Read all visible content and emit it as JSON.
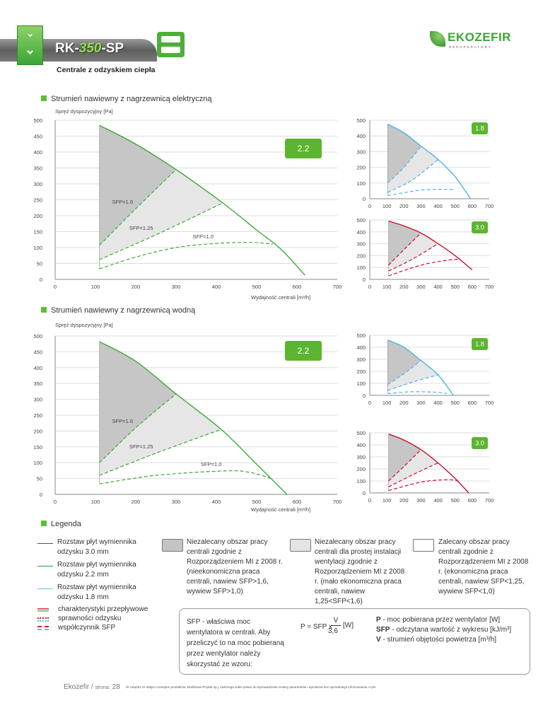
{
  "header": {
    "model_prefix": "RK-",
    "model_number": "350",
    "model_suffix": "-SP",
    "subtitle": "Centrale z odzyskiem ciepła",
    "logo_name": "EKOZEFIR",
    "logo_tagline": "REKUPERATORY"
  },
  "sections": {
    "electric": "Strumień nawiewny z nagrzewnicą elektryczną",
    "water": "Strumień nawiewny z nagrzewnicą wodną",
    "legend": "Legenda"
  },
  "colors": {
    "green": "#3aaa35",
    "blue": "#4db3e6",
    "red": "#c8102e",
    "dark_area": "#c6c6c6",
    "light_area": "#e6e6e6"
  },
  "chart_data": [
    {
      "id": "electric-2.2",
      "type": "line",
      "badge": "2.2",
      "color": "green",
      "ylabel": "Spręż dyspozycyjny [Pa]",
      "xlabel": "Wydajność centrali [m³/h]",
      "xlim": [
        0,
        700
      ],
      "ylim": [
        0,
        500
      ],
      "xticks": [
        0,
        100,
        200,
        300,
        400,
        500,
        600,
        700
      ],
      "yticks": [
        0,
        50,
        100,
        150,
        200,
        250,
        300,
        350,
        400,
        450,
        500
      ],
      "curve": [
        [
          110,
          484
        ],
        [
          200,
          425
        ],
        [
          300,
          345
        ],
        [
          416,
          240
        ],
        [
          500,
          155
        ],
        [
          560,
          95
        ],
        [
          620,
          13
        ]
      ],
      "sfp16": [
        [
          110,
          107
        ],
        [
          200,
          222
        ],
        [
          300,
          345
        ]
      ],
      "sfp125": [
        [
          110,
          62
        ],
        [
          250,
          140
        ],
        [
          416,
          240
        ]
      ],
      "sfp10": [
        [
          110,
          33
        ],
        [
          200,
          70
        ],
        [
          300,
          100
        ],
        [
          400,
          113
        ],
        [
          486,
          116
        ],
        [
          540,
          111
        ]
      ],
      "labels": {
        "sfp16": "SFP=1.6",
        "sfp125": "SFP=1.25",
        "sfp10": "SFP=1.0"
      }
    },
    {
      "id": "electric-1.8",
      "type": "line",
      "badge": "1.8",
      "color": "blue",
      "xlim": [
        0,
        700
      ],
      "ylim": [
        0,
        500
      ],
      "xticks": [
        0,
        100,
        200,
        300,
        400,
        500,
        600,
        700
      ],
      "yticks": [
        0,
        100,
        200,
        300,
        400,
        500
      ],
      "curve": [
        [
          105,
          475
        ],
        [
          200,
          420
        ],
        [
          300,
          335
        ],
        [
          400,
          250
        ],
        [
          500,
          140
        ],
        [
          590,
          0
        ]
      ],
      "sfp16": [
        [
          105,
          100
        ],
        [
          200,
          200
        ],
        [
          300,
          335
        ]
      ],
      "sfp125": [
        [
          105,
          40
        ],
        [
          250,
          120
        ],
        [
          400,
          250
        ]
      ],
      "sfp10": [
        [
          105,
          20
        ],
        [
          300,
          55
        ],
        [
          450,
          60
        ],
        [
          500,
          55
        ]
      ]
    },
    {
      "id": "electric-3.0",
      "type": "line",
      "badge": "3.0",
      "color": "red",
      "xlim": [
        0,
        700
      ],
      "ylim": [
        0,
        500
      ],
      "xticks": [
        0,
        100,
        200,
        300,
        400,
        500,
        600,
        700
      ],
      "yticks": [
        0,
        100,
        200,
        300,
        400,
        500
      ],
      "curve": [
        [
          110,
          490
        ],
        [
          200,
          450
        ],
        [
          300,
          390
        ],
        [
          400,
          300
        ],
        [
          500,
          200
        ],
        [
          600,
          80
        ]
      ],
      "sfp16": [
        [
          110,
          120
        ],
        [
          200,
          250
        ],
        [
          300,
          390
        ]
      ],
      "sfp125": [
        [
          110,
          70
        ],
        [
          250,
          170
        ],
        [
          400,
          300
        ]
      ],
      "sfp10": [
        [
          110,
          30
        ],
        [
          300,
          120
        ],
        [
          450,
          160
        ],
        [
          520,
          170
        ]
      ]
    },
    {
      "id": "water-2.2",
      "type": "line",
      "badge": "2.2",
      "color": "green",
      "ylabel": "Spręż dyspozycyjny [Pa]",
      "xlabel": "Wydajność centrali [m³/h]",
      "xlim": [
        0,
        700
      ],
      "ylim": [
        0,
        500
      ],
      "xticks": [
        0,
        100,
        200,
        300,
        400,
        500,
        600,
        700
      ],
      "yticks": [
        0,
        50,
        100,
        150,
        200,
        250,
        300,
        350,
        400,
        450,
        500
      ],
      "curve": [
        [
          110,
          482
        ],
        [
          200,
          420
        ],
        [
          300,
          317
        ],
        [
          412,
          205
        ],
        [
          500,
          95
        ],
        [
          575,
          0
        ]
      ],
      "sfp16": [
        [
          110,
          100
        ],
        [
          200,
          210
        ],
        [
          300,
          317
        ]
      ],
      "sfp125": [
        [
          110,
          60
        ],
        [
          250,
          130
        ],
        [
          412,
          205
        ]
      ],
      "sfp10": [
        [
          110,
          33
        ],
        [
          250,
          60
        ],
        [
          420,
          74
        ],
        [
          480,
          70
        ],
        [
          540,
          49
        ]
      ],
      "labels": {
        "sfp16": "SFP=1.6",
        "sfp125": "SFP=1.25",
        "sfp10": "SFP=1.0"
      }
    },
    {
      "id": "water-1.8",
      "type": "line",
      "badge": "1.8",
      "color": "blue",
      "xlim": [
        0,
        700
      ],
      "ylim": [
        0,
        500
      ],
      "xticks": [
        0,
        100,
        200,
        300,
        400,
        500,
        600,
        700
      ],
      "yticks": [
        0,
        100,
        200,
        300,
        400,
        500
      ],
      "curve": [
        [
          105,
          460
        ],
        [
          200,
          400
        ],
        [
          300,
          290
        ],
        [
          400,
          170
        ],
        [
          490,
          0
        ]
      ],
      "sfp16": [
        [
          105,
          90
        ],
        [
          200,
          180
        ],
        [
          300,
          290
        ]
      ],
      "sfp125": [
        [
          105,
          40
        ],
        [
          250,
          110
        ],
        [
          400,
          170
        ]
      ],
      "sfp10": [
        [
          105,
          15
        ],
        [
          250,
          30
        ],
        [
          400,
          25
        ],
        [
          450,
          15
        ]
      ]
    },
    {
      "id": "water-3.0",
      "type": "line",
      "badge": "3.0",
      "color": "red",
      "xlim": [
        0,
        700
      ],
      "ylim": [
        0,
        500
      ],
      "xticks": [
        0,
        100,
        200,
        300,
        400,
        500,
        600,
        700
      ],
      "yticks": [
        0,
        100,
        200,
        300,
        400,
        500
      ],
      "curve": [
        [
          110,
          490
        ],
        [
          200,
          440
        ],
        [
          300,
          360
        ],
        [
          400,
          250
        ],
        [
          500,
          120
        ],
        [
          580,
          0
        ]
      ],
      "sfp16": [
        [
          110,
          100
        ],
        [
          200,
          220
        ],
        [
          300,
          360
        ]
      ],
      "sfp125": [
        [
          110,
          50
        ],
        [
          250,
          150
        ],
        [
          400,
          250
        ]
      ],
      "sfp10": [
        [
          110,
          20
        ],
        [
          300,
          90
        ],
        [
          450,
          110
        ],
        [
          520,
          100
        ]
      ]
    }
  ],
  "legend": {
    "lines": [
      {
        "label": "Rozstaw płyt wymiennika odzysku 3.0 mm",
        "color": "#d7192d"
      },
      {
        "label": "Rozstaw płyt wymiennika odzysku 2.2 mm",
        "color": "#1f9a3c"
      },
      {
        "label": "Rozstaw płyt wymiennika odzysku 1.8 mm",
        "color": "#5bc0eb"
      }
    ],
    "styles": [
      "charakterystyki przepływowe",
      "sprawności odzysku",
      "współczynnik SFP"
    ],
    "areas": [
      "Niezalecany obszar pracy centrali zgodnie z Rozporządzeniem MI z 2008 r. (nieekonomiczna praca centrali, nawiew SFP>1,6, wywiew SFP>1,0)",
      "Niezalecany obszar pracy centrali dla prostej instalacji wentylacji zgodnie z Rozporządzeniem MI z 2008 r. (mało ekonomiczna praca centrali, nawiew 1,25<SFP<1,6)",
      "Zalecany obszar pracy centrali zgodnie z Rozporządzeniem MI z 2008 r. (ekonomiczna praca centrali, nawiew SFP<1,25, wywiew SFP<1,0)"
    ]
  },
  "formula": {
    "intro": "SFP - właściwa moc wentylatora w centrali. Aby przeliczyć to na moc pobieraną przez wentylator należy skorzystać ze wzoru:",
    "lhs": "P = SFP x",
    "num": "V",
    "den": "3,6",
    "unit": "[W]",
    "defs": [
      {
        "k": "P",
        "t": " - moc pobierana przez wentylator [W]"
      },
      {
        "k": "SFP",
        "t": " - odczytana wartość z wykresu [kJ/m³]"
      },
      {
        "k": "V",
        "t": " - strumień objętości powietrza [m³/h]"
      }
    ]
  },
  "footer": {
    "brand": "Ekozefir / ",
    "page_label": "strona:",
    "page": "28",
    "disclaimer": "W związku ze stałym rozwojem produktów, Ekoklimax-Projekt sp.j. zastrzega sobie prawo do wprowadzenia zmiany parametrów i wymiarów bez uprzedniego informowania o tym."
  }
}
